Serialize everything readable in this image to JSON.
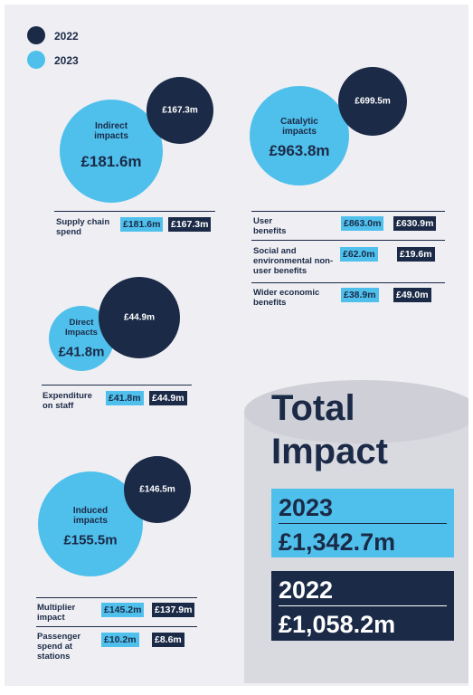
{
  "legend": [
    {
      "label": "2022"
    },
    {
      "label": "2023"
    }
  ],
  "sections": [
    {
      "title": "Indirect impacts",
      "value_2023": "£181.6m",
      "value_2022": "£167.3m",
      "rows": [
        {
          "label": "Supply chain spend",
          "v2023": "£181.6m",
          "v2022": "£167.3m"
        }
      ]
    },
    {
      "title": "Catalytic impacts",
      "value_2023": "£963.8m",
      "value_2022": "£699.5m",
      "rows": [
        {
          "label": "User benefits",
          "v2023": "£863.0m",
          "v2022": "£630.9m"
        },
        {
          "label": "Social and environmental non-user benefits",
          "v2023": "£62.0m",
          "v2022": "£19.6m"
        },
        {
          "label": "Wider economic benefits",
          "v2023": "£38.9m",
          "v2022": "£49.0m"
        }
      ]
    },
    {
      "title": "Direct Impacts",
      "value_2023": "£41.8m",
      "value_2022": "£44.9m",
      "rows": [
        {
          "label": "Expenditure on staff",
          "v2023": "£41.8m",
          "v2022": "£44.9m"
        }
      ]
    },
    {
      "title": "Induced impacts",
      "value_2023": "£155.5m",
      "value_2022": "£146.5m",
      "rows": [
        {
          "label": "Multiplier impact",
          "v2023": "£145.2m",
          "v2022": "£137.9m"
        },
        {
          "label": "Passenger spend at stations",
          "v2023": "£10.2m",
          "v2022": "£8.6m"
        }
      ]
    }
  ],
  "total": {
    "title": "Total Impact",
    "items": [
      {
        "year": "2023",
        "value": "£1,342.7m"
      },
      {
        "year": "2022",
        "value": "£1,058.2m"
      }
    ]
  }
}
